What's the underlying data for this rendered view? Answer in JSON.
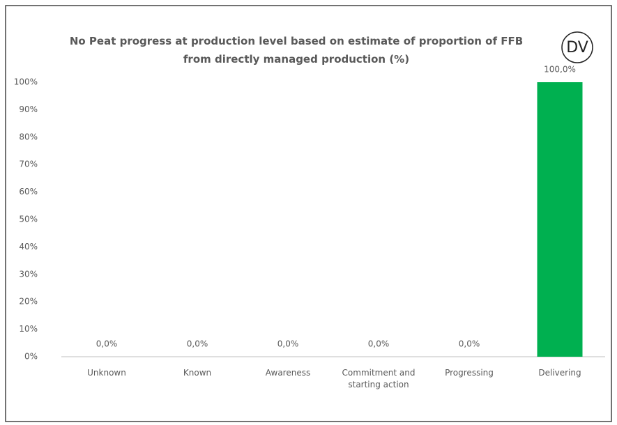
{
  "chart_data": {
    "type": "bar",
    "title": "No Peat progress at production level based on estimate of proportion of FFB from directly managed production (%)",
    "badge": "DV",
    "categories": [
      "Unknown",
      "Known",
      "Awareness",
      "Commitment and starting action",
      "Progressing",
      "Delivering"
    ],
    "values": [
      0,
      0,
      0,
      0,
      0,
      100
    ],
    "value_labels": [
      "0,0%",
      "0,0%",
      "0,0%",
      "0,0%",
      "0,0%",
      "100,0%"
    ],
    "color": "#00b050",
    "ylim": [
      0,
      100
    ],
    "yticks": [
      {
        "value": 0,
        "label": "0%"
      },
      {
        "value": 10,
        "label": "10%"
      },
      {
        "value": 20,
        "label": "20%"
      },
      {
        "value": 30,
        "label": "30%"
      },
      {
        "value": 40,
        "label": "40%"
      },
      {
        "value": 50,
        "label": "50%"
      },
      {
        "value": 60,
        "label": "60%"
      },
      {
        "value": 70,
        "label": "70%"
      },
      {
        "value": 80,
        "label": "80%"
      },
      {
        "value": 90,
        "label": "90%"
      },
      {
        "value": 100,
        "label": "100%"
      }
    ],
    "grid": false
  }
}
